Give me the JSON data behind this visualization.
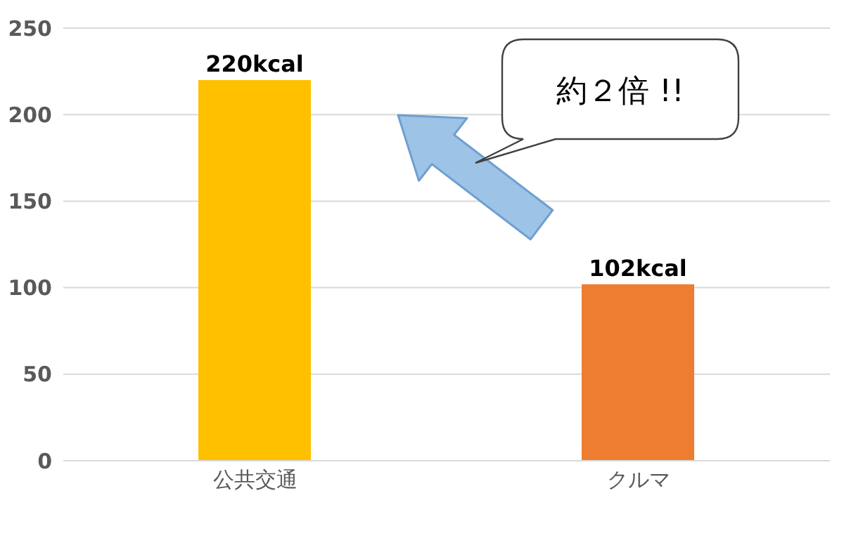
{
  "chart_data": {
    "type": "bar",
    "categories": [
      "公共交通",
      "クルマ"
    ],
    "values": [
      220,
      102
    ],
    "colors": [
      "#ffc000",
      "#ed7d31"
    ],
    "value_labels": [
      "220kcal",
      "102kcal"
    ],
    "ylim": [
      0,
      250
    ],
    "yticks": [
      0,
      50,
      100,
      150,
      200,
      250
    ],
    "grid": "y",
    "annotations": [
      "約２倍 !!"
    ]
  }
}
